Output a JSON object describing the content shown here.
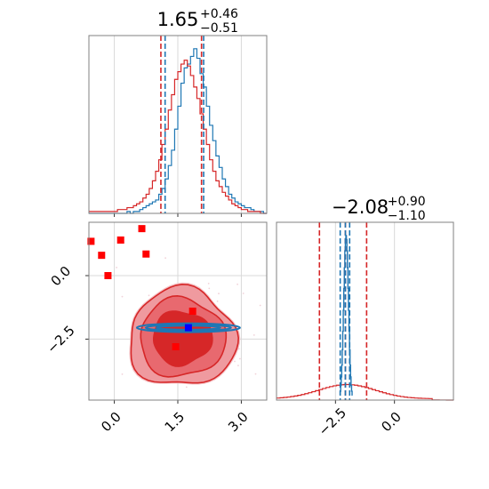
{
  "chart_data": [
    {
      "panel": "marginal-x",
      "type": "histogram",
      "title": {
        "main": "1.65",
        "sup": "+0.46",
        "sub": "−0.51"
      },
      "xlim": [
        -0.6,
        3.6
      ],
      "grid": true,
      "x_ticks_gridlines": [
        0.0,
        1.5,
        3.0
      ],
      "series": [
        {
          "color": "#1f77b4",
          "bin_start": -0.6,
          "bin_width": 0.075,
          "values": [
            0,
            0,
            0,
            0,
            0,
            0,
            0,
            0,
            0,
            0,
            0,
            0,
            1,
            0,
            1,
            1,
            2,
            3,
            4,
            5,
            6,
            7,
            10,
            13,
            18,
            25,
            33,
            44,
            56,
            68,
            76,
            78,
            82,
            86,
            81,
            73,
            66,
            56,
            46,
            38,
            30,
            24,
            18,
            14,
            10,
            8,
            6,
            5,
            4,
            3,
            3,
            2,
            1,
            1,
            1,
            0
          ]
        },
        {
          "color": "#d62728",
          "bin_start": -0.6,
          "bin_width": 0.075,
          "values": [
            1,
            1,
            1,
            1,
            1,
            1,
            1,
            1,
            1,
            2,
            2,
            2,
            3,
            3,
            4,
            5,
            6,
            8,
            10,
            13,
            17,
            22,
            28,
            36,
            44,
            54,
            62,
            70,
            74,
            78,
            80,
            77,
            72,
            66,
            60,
            52,
            44,
            36,
            28,
            22,
            17,
            14,
            11,
            9,
            7,
            5,
            4,
            3,
            2,
            2,
            1,
            1,
            1,
            1,
            0,
            0
          ]
        }
      ],
      "quantile_lines": {
        "blue": [
          1.2,
          1.65,
          2.11
        ],
        "red": [
          1.1,
          1.65,
          2.06
        ]
      }
    },
    {
      "panel": "marginal-y",
      "type": "histogram",
      "title": {
        "main": "−2.08",
        "sup": "+0.90",
        "sub": "−1.10"
      },
      "xlim": [
        -5.0,
        2.5
      ],
      "x_ticks": [
        "−2.5",
        "0.0"
      ],
      "x_tick_values": [
        -2.5,
        0.0
      ],
      "grid": true,
      "series": [
        {
          "color": "#1f77b4",
          "peak_center": -2.06,
          "peak_width": 0.1
        },
        {
          "color": "#d62728",
          "peak_center": -2.08,
          "peak_width": 1.2
        }
      ],
      "quantile_lines": {
        "blue": [
          -2.3,
          -2.08,
          -1.9
        ],
        "red": [
          -3.18,
          -2.08,
          -1.18
        ]
      }
    },
    {
      "panel": "joint",
      "type": "contour",
      "xlim": [
        -0.6,
        3.6
      ],
      "ylim": [
        -4.9,
        2.1
      ],
      "x_ticks": [
        "0.0",
        "1.5",
        "3.0"
      ],
      "x_tick_values": [
        0.0,
        1.5,
        3.0
      ],
      "y_ticks": [
        "0.0",
        "−2.5"
      ],
      "y_tick_values": [
        0.0,
        -2.5
      ],
      "grid": true,
      "red_contour_center": [
        1.6,
        -2.45
      ],
      "blue_contour_center": [
        1.75,
        -2.05
      ],
      "red_squares": [
        {
          "x": -0.55,
          "y": 1.35
        },
        {
          "x": -0.3,
          "y": 0.8
        },
        {
          "x": 0.15,
          "y": 1.4
        },
        {
          "x": -0.15,
          "y": 0.0
        },
        {
          "x": 0.65,
          "y": 1.85
        },
        {
          "x": 0.75,
          "y": 0.85
        },
        {
          "x": 1.85,
          "y": -1.4
        },
        {
          "x": 1.45,
          "y": -2.8
        }
      ],
      "blue_square": {
        "x": 1.75,
        "y": -2.05
      }
    }
  ]
}
